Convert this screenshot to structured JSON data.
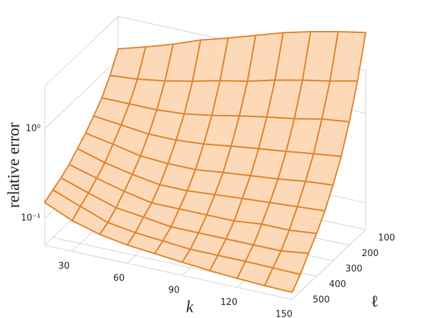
{
  "chart_data": {
    "type": "surface",
    "xlabel": "k",
    "ylabel": "ℓ",
    "zlabel": "relative error",
    "x": [
      15,
      30,
      45,
      60,
      75,
      90,
      105,
      120,
      135,
      150
    ],
    "y": [
      100,
      150,
      200,
      250,
      300,
      350,
      400,
      450,
      500,
      550
    ],
    "z": [
      [
        1.3,
        0.8,
        0.55,
        0.42,
        0.33,
        0.27,
        0.22,
        0.19,
        0.17,
        0.15
      ],
      [
        1.6,
        0.85,
        0.55,
        0.39,
        0.29,
        0.22,
        0.18,
        0.15,
        0.13,
        0.11
      ],
      [
        2.0,
        0.95,
        0.55,
        0.36,
        0.25,
        0.19,
        0.15,
        0.12,
        0.1,
        0.09
      ],
      [
        2.6,
        1.1,
        0.58,
        0.36,
        0.24,
        0.17,
        0.13,
        0.11,
        0.09,
        0.08
      ],
      [
        3.2,
        1.3,
        0.65,
        0.38,
        0.24,
        0.17,
        0.13,
        0.1,
        0.085,
        0.075
      ],
      [
        4,
        1.5,
        0.75,
        0.42,
        0.26,
        0.18,
        0.13,
        0.1,
        0.08,
        0.07
      ],
      [
        5,
        1.8,
        0.85,
        0.46,
        0.28,
        0.19,
        0.13,
        0.1,
        0.08,
        0.066
      ],
      [
        6,
        2.1,
        0.95,
        0.5,
        0.3,
        0.2,
        0.14,
        0.1,
        0.08,
        0.063
      ],
      [
        7,
        2.4,
        1.1,
        0.55,
        0.33,
        0.21,
        0.14,
        0.1,
        0.079,
        0.061
      ],
      [
        8,
        2.8,
        1.2,
        0.6,
        0.35,
        0.22,
        0.15,
        0.11,
        0.078,
        0.06
      ]
    ],
    "xlim": [
      15,
      150
    ],
    "ylim": [
      100,
      550
    ],
    "zlim": [
      0.05,
      3
    ],
    "zscale": "log",
    "xticks": [
      30,
      60,
      90,
      120,
      150
    ],
    "yticks": [
      100,
      200,
      300,
      400,
      500
    ],
    "zticks": [
      {
        "value": 0.1,
        "label": "10⁻¹"
      },
      {
        "value": 1,
        "label": "10⁰"
      }
    ],
    "face_color": "#fbd3ad",
    "edge_color": "#e0832e",
    "grid": true
  }
}
